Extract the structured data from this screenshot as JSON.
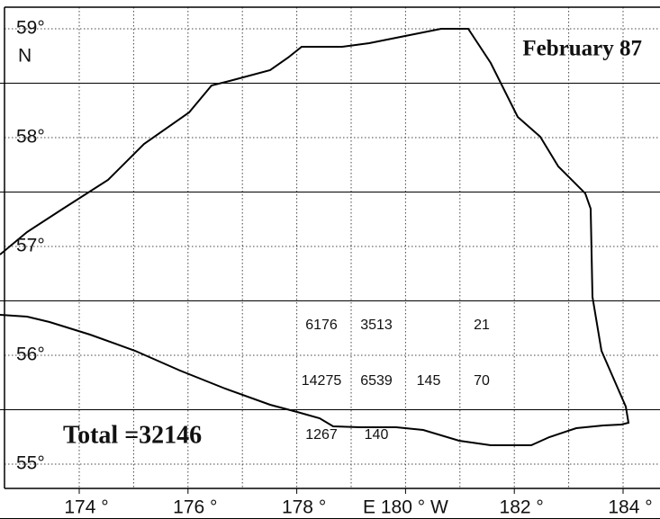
{
  "map": {
    "title": "February 87",
    "total": "Total =32146",
    "lat_labels": [
      "59°",
      "58°",
      "57°",
      "56°",
      "55°"
    ],
    "lat_hemisphere": "N",
    "lon_labels": [
      "174 °",
      "176 °",
      "178 °",
      "E 180 ° W",
      "182 °",
      "184 °"
    ],
    "cells": [
      [
        6176,
        3513,
        null,
        21
      ],
      [
        14275,
        6539,
        145,
        70
      ],
      [
        1267,
        140,
        null,
        null
      ]
    ]
  }
}
